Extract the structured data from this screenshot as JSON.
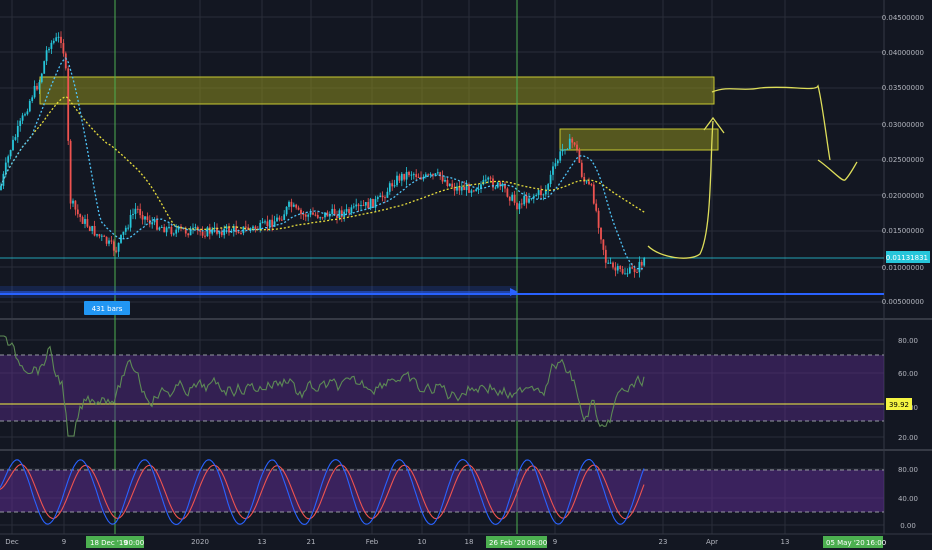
{
  "main_pane": {
    "price_axis_labels": [
      "0.04500000",
      "0.04000000",
      "0.03500000",
      "0.03000000",
      "0.02500000",
      "0.02000000",
      "0.01500000",
      "0.01000000",
      "0.00500000"
    ],
    "current_price": "0.01131831",
    "bars_label": "431 bars"
  },
  "rsi_pane": {
    "axis_labels": [
      "80.00",
      "60.00",
      "40.00",
      "20.00"
    ],
    "current_value": "39.92"
  },
  "stoch_pane": {
    "axis_labels": [
      "80.00",
      "40.00",
      "0.00"
    ]
  },
  "time_axis": {
    "labels": [
      "Dec",
      "9",
      "2020",
      "13",
      "21",
      "Feb",
      "10",
      "18",
      "9",
      "23",
      "Apr",
      "13"
    ],
    "cursor_labels": [
      "18 Dec '19",
      "00:00",
      "26 Feb '20",
      "08:00",
      "05 May '20",
      "16:00"
    ]
  },
  "colors": {
    "background": "#131722",
    "grid": "#2a2e39",
    "candle_up": "#26c6da",
    "candle_down": "#ef5350",
    "ma_slow": "#e6dc3c",
    "ma_fast": "#4fc3f7",
    "zone_fill": "#8c8c1e",
    "zone_stroke": "#c8c832",
    "drawing": "#dede5a",
    "support_line": "#2962ff",
    "vertical_line": "#4caf50",
    "rsi_band": "#5b2c8e",
    "rsi_line": "#5d8a55",
    "rsi_level": "#f5f542",
    "stoch_k": "#2962ff",
    "stoch_d": "#ef5350",
    "badge_price": "#26c6da",
    "badge_rsi": "#f5f542",
    "badge_bars": "#2196f3",
    "badge_date": "#4caf50"
  }
}
